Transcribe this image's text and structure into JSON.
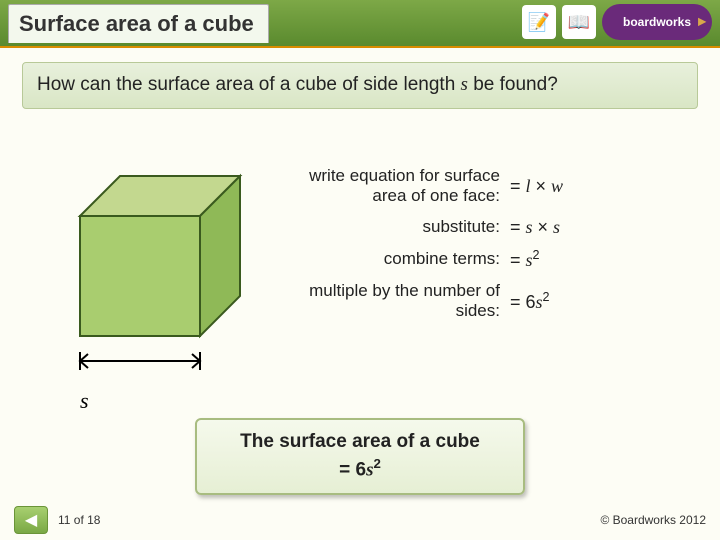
{
  "header": {
    "title": "Surface area of a cube",
    "logo_text": "boardworks"
  },
  "question": {
    "prefix": "How can the surface area of a cube of side length ",
    "variable": "s",
    "suffix": " be found?"
  },
  "cube": {
    "top_fill": "#c3d88f",
    "side_fill": "#8fb957",
    "front_fill": "#a9cd6f",
    "stroke": "#3a5a1e",
    "label": "s"
  },
  "steps": [
    {
      "label": "write equation for surface area of one face:",
      "formula_html": "=  <span class='mi'>l</span> × <span class='mi'>w</span>"
    },
    {
      "label": "substitute:",
      "formula_html": "=  <span class='mi'>s</span> × <span class='mi'>s</span>"
    },
    {
      "label": "combine terms:",
      "formula_html": "=  <span class='mi'>s</span><span class='sup'>2</span>"
    },
    {
      "label": "multiple by the number of sides:",
      "formula_html": "=  6<span class='mi'>s</span><span class='sup'>2</span>"
    }
  ],
  "conclusion": {
    "line1": "The surface area of a cube",
    "line2_html": "=  6<span class='mi'>s</span><span class='sup'>2</span>"
  },
  "footer": {
    "page": "11 of 18",
    "copyright": "© Boardworks 2012"
  }
}
